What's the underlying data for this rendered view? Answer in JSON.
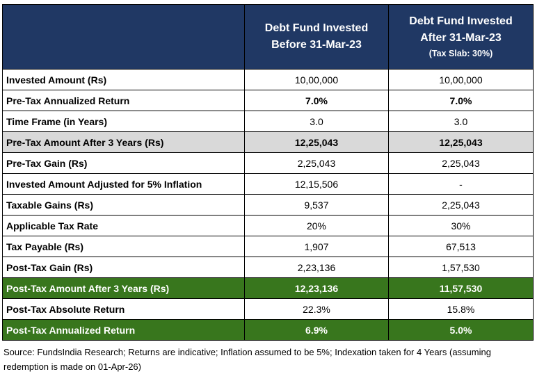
{
  "table": {
    "headers": [
      {
        "line1": "",
        "line2": "",
        "line3": ""
      },
      {
        "line1": "Debt Fund Invested",
        "line2": "Before 31-Mar-23",
        "line3": ""
      },
      {
        "line1": "Debt Fund Invested",
        "line2": "After 31-Mar-23",
        "line3": "(Tax Slab: 30%)"
      }
    ],
    "rows": [
      {
        "label": "Invested Amount (Rs)",
        "before": "10,00,000",
        "after": "10,00,000",
        "style": "normal"
      },
      {
        "label": "Pre-Tax Annualized Return",
        "before": "7.0%",
        "after": "7.0%",
        "style": "bold"
      },
      {
        "label": "Time Frame (in Years)",
        "before": "3.0",
        "after": "3.0",
        "style": "normal"
      },
      {
        "label": "Pre-Tax Amount After 3 Years (Rs)",
        "before": "12,25,043",
        "after": "12,25,043",
        "style": "gray"
      },
      {
        "label": "Pre-Tax Gain (Rs)",
        "before": "2,25,043",
        "after": "2,25,043",
        "style": "normal"
      },
      {
        "label": "Invested Amount Adjusted for 5% Inflation",
        "before": "12,15,506",
        "after": "-",
        "style": "normal"
      },
      {
        "label": "Taxable Gains (Rs)",
        "before": "9,537",
        "after": "2,25,043",
        "style": "normal"
      },
      {
        "label": "Applicable Tax Rate",
        "before": "20%",
        "after": "30%",
        "style": "normal"
      },
      {
        "label": "Tax Payable (Rs)",
        "before": "1,907",
        "after": "67,513",
        "style": "normal"
      },
      {
        "label": "Post-Tax Gain (Rs)",
        "before": "2,23,136",
        "after": "1,57,530",
        "style": "normal"
      },
      {
        "label": "Post-Tax Amount After 3 Years (Rs)",
        "before": "12,23,136",
        "after": "11,57,530",
        "style": "green"
      },
      {
        "label": "Post-Tax Absolute Return",
        "before": "22.3%",
        "after": "15.8%",
        "style": "normal"
      },
      {
        "label": "Post-Tax Annualized Return",
        "before": "6.9%",
        "after": "5.0%",
        "style": "green"
      }
    ]
  },
  "colors": {
    "header_bg": "#203864",
    "highlight_gray": "#d9d9d9",
    "highlight_green": "#38761d"
  },
  "footnote": "Source: FundsIndia Research; Returns are indicative; Inflation assumed to be 5%; Indexation taken for 4 Years (assuming redemption is made on 01-Apr-26)"
}
